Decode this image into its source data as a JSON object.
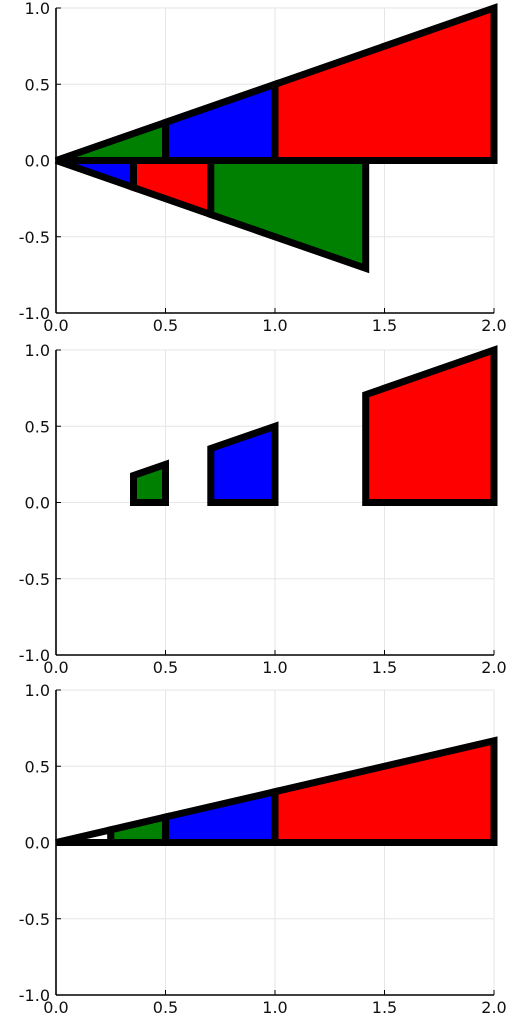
{
  "chart_data": [
    {
      "type": "area",
      "xlim": [
        0.0,
        2.0
      ],
      "ylim": [
        -1.0,
        1.0
      ],
      "xticks": [
        "0.0",
        "0.5",
        "1.0",
        "1.5",
        "2.0"
      ],
      "yticks": [
        "1.0",
        "0.5",
        "0.0",
        "-0.5",
        "-1.0"
      ],
      "grid": true,
      "legend": "none",
      "polygons": [
        {
          "color": "#008000",
          "points": [
            [
              0,
              0
            ],
            [
              0.5,
              0.25
            ],
            [
              0.5,
              0
            ]
          ]
        },
        {
          "color": "#0000ff",
          "points": [
            [
              0.5,
              0
            ],
            [
              0.5,
              0.25
            ],
            [
              1.0,
              0.5
            ],
            [
              1.0,
              0
            ]
          ]
        },
        {
          "color": "#ff0000",
          "points": [
            [
              1.0,
              0
            ],
            [
              1.0,
              0.5
            ],
            [
              2.0,
              1.0
            ],
            [
              2.0,
              0
            ]
          ]
        },
        {
          "color": "#0000ff",
          "points": [
            [
              0,
              0
            ],
            [
              0.354,
              0
            ],
            [
              0.354,
              -0.177
            ]
          ]
        },
        {
          "color": "#ff0000",
          "points": [
            [
              0.354,
              0
            ],
            [
              0.707,
              0
            ],
            [
              0.707,
              -0.354
            ],
            [
              0.354,
              -0.177
            ]
          ]
        },
        {
          "color": "#008000",
          "points": [
            [
              0.707,
              0
            ],
            [
              1.414,
              0
            ],
            [
              1.414,
              -0.707
            ],
            [
              0.707,
              -0.354
            ]
          ]
        }
      ]
    },
    {
      "type": "area",
      "xlim": [
        0.0,
        2.0
      ],
      "ylim": [
        -1.0,
        1.0
      ],
      "xticks": [
        "0.0",
        "0.5",
        "1.0",
        "1.5",
        "2.0"
      ],
      "yticks": [
        "1.0",
        "0.5",
        "0.0",
        "-0.5",
        "-1.0"
      ],
      "grid": true,
      "legend": "none",
      "polygons": [
        {
          "color": "#008000",
          "points": [
            [
              0.354,
              0
            ],
            [
              0.354,
              0.177
            ],
            [
              0.5,
              0.25
            ],
            [
              0.5,
              0
            ]
          ]
        },
        {
          "color": "#0000ff",
          "points": [
            [
              0.707,
              0
            ],
            [
              0.707,
              0.354
            ],
            [
              1.0,
              0.5
            ],
            [
              1.0,
              0
            ]
          ]
        },
        {
          "color": "#ff0000",
          "points": [
            [
              1.414,
              0
            ],
            [
              1.414,
              0.707
            ],
            [
              2.0,
              1.0
            ],
            [
              2.0,
              0
            ]
          ]
        }
      ]
    },
    {
      "type": "area",
      "xlim": [
        0.0,
        2.0
      ],
      "ylim": [
        -1.0,
        1.0
      ],
      "xticks": [
        "0.0",
        "0.5",
        "1.0",
        "1.5",
        "2.0"
      ],
      "yticks": [
        "1.0",
        "0.5",
        "0.0",
        "-0.5",
        "-1.0"
      ],
      "grid": true,
      "legend": "none",
      "polygons": [
        {
          "color": "#ffffff",
          "points": [
            [
              0,
              0
            ],
            [
              0.25,
              0.083
            ],
            [
              0.25,
              0
            ]
          ]
        },
        {
          "color": "#008000",
          "points": [
            [
              0.25,
              0
            ],
            [
              0.25,
              0.083
            ],
            [
              0.5,
              0.167
            ],
            [
              0.5,
              0
            ]
          ]
        },
        {
          "color": "#0000ff",
          "points": [
            [
              0.5,
              0
            ],
            [
              0.5,
              0.167
            ],
            [
              1.0,
              0.333
            ],
            [
              1.0,
              0
            ]
          ]
        },
        {
          "color": "#ff0000",
          "points": [
            [
              1.0,
              0
            ],
            [
              1.0,
              0.333
            ],
            [
              2.0,
              0.667
            ],
            [
              2.0,
              0
            ]
          ]
        }
      ]
    }
  ]
}
